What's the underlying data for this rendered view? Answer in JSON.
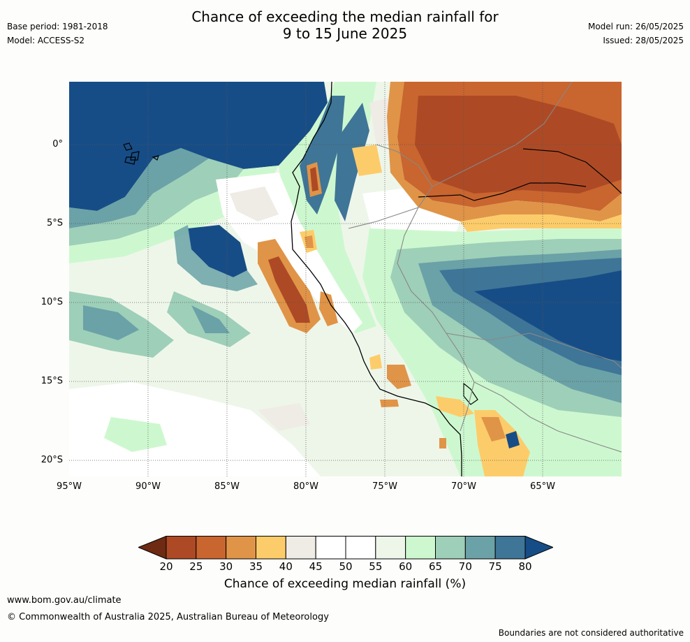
{
  "title_line1": "Chance of exceeding the median rainfall for",
  "title_line2": "9 to 15 June 2025",
  "base_period": "Base period: 1981-2018",
  "model": "Model: ACCESS-S2",
  "model_run": "Model run: 26/05/2025",
  "issued": "Issued: 28/05/2025",
  "lat_labels": [
    "0°",
    "5°S",
    "10°S",
    "15°S",
    "20°S"
  ],
  "lon_labels": [
    "95°W",
    "90°W",
    "85°W",
    "80°W",
    "75°W",
    "70°W",
    "65°W"
  ],
  "colorbar": {
    "ticks": [
      "20",
      "25",
      "30",
      "35",
      "40",
      "45",
      "50",
      "55",
      "60",
      "65",
      "70",
      "75",
      "80"
    ],
    "colors": [
      "#6e2a12",
      "#ad4a25",
      "#c9652f",
      "#e09447",
      "#fdcc6a",
      "#efebe5",
      "#ffffff",
      "#ffffff",
      "#eef6ea",
      "#cdf8cf",
      "#9ecfb8",
      "#6aa2a7",
      "#3f7597",
      "#174d86"
    ],
    "label": "Chance of exceeding median rainfall (%)"
  },
  "footer_url": "www.bom.gov.au/climate",
  "footer_copyright": "© Commonwealth of Australia 2025, Australian Bureau of Meteorology",
  "footer_disclaimer": "Boundaries are not considered authoritative"
}
